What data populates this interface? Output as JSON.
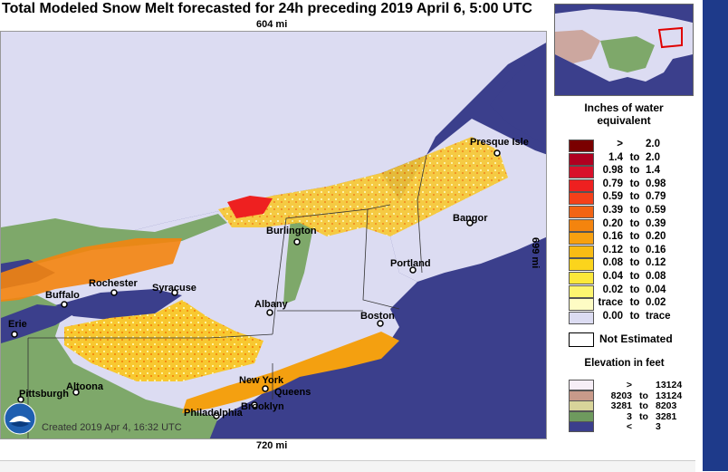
{
  "title": "Total Modeled Snow Melt forecasted for 24h preceding 2019 April 6, 5:00 UTC",
  "scale": {
    "top": "604 mi",
    "bottom": "720 mi",
    "right": "699 mi"
  },
  "created": "Created 2019 Apr 4, 16:32 UTC",
  "cities": [
    {
      "name": "Presque Isle"
    },
    {
      "name": "Bangor"
    },
    {
      "name": "Burlington"
    },
    {
      "name": "Portland"
    },
    {
      "name": "Rochester"
    },
    {
      "name": "Syracuse"
    },
    {
      "name": "Buffalo"
    },
    {
      "name": "Albany"
    },
    {
      "name": "Boston"
    },
    {
      "name": "Erie"
    },
    {
      "name": "New York"
    },
    {
      "name": "Queens"
    },
    {
      "name": "Pittsburgh"
    },
    {
      "name": "Altoona"
    },
    {
      "name": "Brooklyn"
    },
    {
      "name": "Philadelphia"
    }
  ],
  "legend": {
    "title": "Inches of water equivalent",
    "rows": [
      {
        "from": ">",
        "to_word": "",
        "to": "2.0",
        "color": "#7a0000"
      },
      {
        "from": "1.4",
        "to_word": "to",
        "to": "2.0",
        "color": "#b00020"
      },
      {
        "from": "0.98",
        "to_word": "to",
        "to": "1.4",
        "color": "#d8102a"
      },
      {
        "from": "0.79",
        "to_word": "to",
        "to": "0.98",
        "color": "#ee2020"
      },
      {
        "from": "0.59",
        "to_word": "to",
        "to": "0.79",
        "color": "#f4401a"
      },
      {
        "from": "0.39",
        "to_word": "to",
        "to": "0.59",
        "color": "#f26414"
      },
      {
        "from": "0.20",
        "to_word": "to",
        "to": "0.39",
        "color": "#f4840e"
      },
      {
        "from": "0.16",
        "to_word": "to",
        "to": "0.20",
        "color": "#f7a010"
      },
      {
        "from": "0.12",
        "to_word": "to",
        "to": "0.16",
        "color": "#f9bc14"
      },
      {
        "from": "0.08",
        "to_word": "to",
        "to": "0.12",
        "color": "#fbd41c"
      },
      {
        "from": "0.04",
        "to_word": "to",
        "to": "0.08",
        "color": "#fce83a"
      },
      {
        "from": "0.02",
        "to_word": "to",
        "to": "0.04",
        "color": "#fdf570"
      },
      {
        "from": "trace",
        "to_word": "to",
        "to": "0.02",
        "color": "#fefcc4"
      },
      {
        "from": "0.00",
        "to_word": "to",
        "to": "trace",
        "color": "#dcdcf2"
      }
    ],
    "not_estimated": "Not Estimated"
  },
  "elevation": {
    "title": "Elevation in feet",
    "rows": [
      {
        "from": ">",
        "to_word": "",
        "to": "13124",
        "color": "#f6eef6"
      },
      {
        "from": "8203",
        "to_word": "to",
        "to": "13124",
        "color": "#c89a8a"
      },
      {
        "from": "3281",
        "to_word": "to",
        "to": "8203",
        "color": "#d8d49a"
      },
      {
        "from": "3",
        "to_word": "to",
        "to": "3281",
        "color": "#6e9a5e"
      },
      {
        "from": "<",
        "to_word": "",
        "to": "3",
        "color": "#3b3f8c"
      }
    ]
  },
  "colors": {
    "water": "#3b3f8c",
    "nosnow": "#dcdcf2",
    "land": "#7ea86a"
  }
}
